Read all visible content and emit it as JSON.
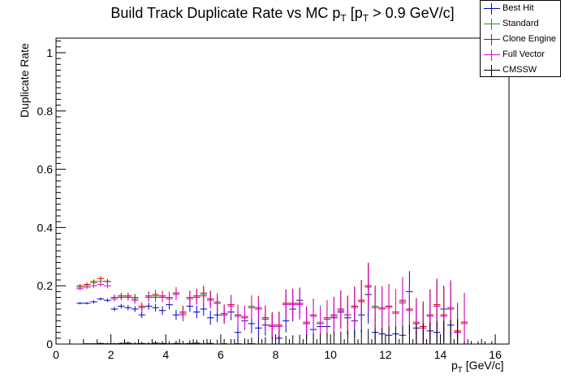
{
  "title_main": "Build Track Duplicate Rate vs MC p",
  "title_sub1": "T",
  "title_mid": " [p",
  "title_sub2": "T",
  "title_end": " > 0.9 GeV/c]",
  "chart_data": {
    "type": "scatter",
    "title": "Build Track Duplicate Rate vs MC pT [pT > 0.9 GeV/c]",
    "xlabel": "pT [GeV/c]",
    "ylabel": "Duplicate Rate",
    "xlim": [
      0,
      16.5
    ],
    "ylim": [
      0,
      1.05
    ],
    "x_ticks": [
      0,
      2,
      4,
      6,
      8,
      10,
      12,
      14,
      16
    ],
    "y_ticks": [
      0,
      0.2,
      0.4,
      0.6,
      0.8,
      1
    ],
    "y_tick_labels": [
      "0",
      "0.2",
      "0.4",
      "0.6",
      "0.8",
      "1"
    ],
    "bin_width": 0.25,
    "legend_position": "top-right",
    "series": [
      {
        "name": "Best Hit",
        "color": "#0000cc",
        "x": [
          0.875,
          1.125,
          1.375,
          1.625,
          1.875,
          2.125,
          2.375,
          2.625,
          2.875,
          3.125,
          3.375,
          3.625,
          3.875,
          4.125,
          4.375,
          4.625,
          4.875,
          5.125,
          5.375,
          5.625,
          5.875,
          6.125,
          6.375,
          6.625,
          6.875,
          7.125,
          7.375,
          7.625,
          7.875,
          8.125,
          8.375,
          8.625,
          8.875,
          9.125,
          9.375,
          9.625,
          9.875,
          10.125,
          10.375,
          10.625,
          10.875,
          11.125,
          11.375,
          11.625,
          11.875,
          12.125,
          12.375,
          12.625,
          12.875,
          13.125,
          13.375,
          13.625,
          13.875,
          14.125,
          14.375,
          14.625
        ],
        "y": [
          0.14,
          0.14,
          0.145,
          0.155,
          0.15,
          0.12,
          0.13,
          0.125,
          0.12,
          0.1,
          0.13,
          0.125,
          0.115,
          0.135,
          0.1,
          0.11,
          0.13,
          0.11,
          0.12,
          0.09,
          0.1,
          0.1,
          0.11,
          0.04,
          0.08,
          0.07,
          0.055,
          0.065,
          0.06,
          0.02,
          0.08,
          0.12,
          0.15,
          0.07,
          0.05,
          0.06,
          0.06,
          0.09,
          0.11,
          0.09,
          0.08,
          0.1,
          0.17,
          0.04,
          0.035,
          0.03,
          0.035,
          0.03,
          0.18,
          0.055,
          0.06,
          0.045,
          0.04,
          0.12,
          0.065,
          0.04
        ],
        "err": [
          0.004,
          0.004,
          0.005,
          0.005,
          0.006,
          0.007,
          0.008,
          0.009,
          0.01,
          0.011,
          0.012,
          0.013,
          0.015,
          0.016,
          0.017,
          0.018,
          0.02,
          0.021,
          0.023,
          0.024,
          0.025,
          0.027,
          0.028,
          0.03,
          0.031,
          0.033,
          0.034,
          0.036,
          0.038,
          0.039,
          0.04,
          0.042,
          0.044,
          0.045,
          0.047,
          0.049,
          0.05,
          0.052,
          0.054,
          0.056,
          0.058,
          0.06,
          0.1,
          0.06,
          0.062,
          0.064,
          0.065,
          0.067,
          0.07,
          0.07,
          0.072,
          0.075,
          0.077,
          0.08,
          0.1,
          0.08
        ]
      },
      {
        "name": "Standard",
        "color": "#00aa00",
        "x": [
          0.875,
          1.125,
          1.375,
          1.625,
          1.875,
          2.125,
          2.375,
          2.625,
          2.875,
          3.125,
          3.375,
          3.625,
          3.875,
          4.125,
          4.375,
          4.625,
          4.875,
          5.125,
          5.375,
          5.625,
          5.875,
          6.125,
          6.375,
          6.625,
          6.875,
          7.125,
          7.375,
          7.625,
          7.875,
          8.125,
          8.375,
          8.625,
          8.875,
          9.125,
          9.375,
          9.625,
          9.875,
          10.125,
          10.375,
          10.625,
          10.875,
          11.125,
          11.375,
          11.625,
          11.875,
          12.125,
          12.375,
          12.625,
          12.875,
          13.125,
          13.375,
          13.625,
          13.875,
          14.125,
          14.375,
          14.625,
          14.875
        ],
        "y": [
          0.195,
          0.2,
          0.21,
          0.215,
          0.215,
          0.16,
          0.165,
          0.165,
          0.155,
          0.125,
          0.165,
          0.165,
          0.165,
          0.16,
          0.175,
          0.105,
          0.16,
          0.165,
          0.17,
          0.155,
          0.145,
          0.1,
          0.135,
          0.1,
          0.09,
          0.13,
          0.12,
          0.09,
          0.065,
          0.065,
          0.14,
          0.14,
          0.14,
          0.07,
          0.1,
          0.075,
          0.09,
          0.1,
          0.12,
          0.1,
          0.13,
          0.15,
          0.2,
          0.13,
          0.12,
          0.13,
          0.11,
          0.14,
          0.12,
          0.07,
          0.06,
          0.1,
          0.13,
          0.1,
          0.12,
          0.045,
          0.075
        ],
        "err": [
          0.006,
          0.006,
          0.007,
          0.008,
          0.009,
          0.009,
          0.01,
          0.011,
          0.012,
          0.013,
          0.015,
          0.016,
          0.017,
          0.019,
          0.02,
          0.022,
          0.023,
          0.025,
          0.026,
          0.028,
          0.03,
          0.031,
          0.033,
          0.035,
          0.036,
          0.038,
          0.04,
          0.042,
          0.044,
          0.046,
          0.048,
          0.05,
          0.052,
          0.054,
          0.056,
          0.058,
          0.06,
          0.062,
          0.064,
          0.066,
          0.068,
          0.07,
          0.08,
          0.072,
          0.074,
          0.076,
          0.078,
          0.08,
          0.082,
          0.084,
          0.086,
          0.088,
          0.09,
          0.092,
          0.094,
          0.096,
          0.1
        ]
      },
      {
        "name": "Clone Engine",
        "color": "#dd0000",
        "x": [
          0.875,
          1.125,
          1.375,
          1.625,
          1.875,
          2.125,
          2.375,
          2.625,
          2.875,
          3.125,
          3.375,
          3.625,
          3.875,
          4.125,
          4.375,
          4.625,
          4.875,
          5.125,
          5.375,
          5.625,
          5.875,
          6.125,
          6.375,
          6.625,
          6.875,
          7.125,
          7.375,
          7.625,
          7.875,
          8.125,
          8.375,
          8.625,
          8.875,
          9.125,
          9.375,
          9.625,
          9.875,
          10.125,
          10.375,
          10.625,
          10.875,
          11.125,
          11.375,
          11.625,
          11.875,
          12.125,
          12.375,
          12.625,
          12.875,
          13.125,
          13.375,
          13.625,
          13.875,
          14.125,
          14.375,
          14.625,
          14.875
        ],
        "y": [
          0.2,
          0.205,
          0.215,
          0.225,
          0.215,
          0.16,
          0.165,
          0.165,
          0.16,
          0.13,
          0.165,
          0.17,
          0.165,
          0.16,
          0.175,
          0.11,
          0.16,
          0.165,
          0.175,
          0.155,
          0.14,
          0.105,
          0.135,
          0.1,
          0.095,
          0.125,
          0.125,
          0.09,
          0.065,
          0.065,
          0.14,
          0.14,
          0.14,
          0.075,
          0.1,
          0.07,
          0.09,
          0.1,
          0.12,
          0.1,
          0.13,
          0.15,
          0.2,
          0.125,
          0.125,
          0.13,
          0.11,
          0.15,
          0.12,
          0.075,
          0.06,
          0.1,
          0.135,
          0.1,
          0.125,
          0.045,
          0.075
        ],
        "err": [
          0.006,
          0.006,
          0.007,
          0.008,
          0.009,
          0.009,
          0.01,
          0.011,
          0.012,
          0.013,
          0.015,
          0.016,
          0.017,
          0.019,
          0.02,
          0.022,
          0.023,
          0.025,
          0.026,
          0.028,
          0.03,
          0.031,
          0.033,
          0.035,
          0.036,
          0.038,
          0.04,
          0.042,
          0.044,
          0.046,
          0.048,
          0.05,
          0.052,
          0.054,
          0.056,
          0.058,
          0.06,
          0.062,
          0.064,
          0.066,
          0.068,
          0.07,
          0.08,
          0.072,
          0.074,
          0.076,
          0.078,
          0.08,
          0.082,
          0.084,
          0.086,
          0.088,
          0.09,
          0.092,
          0.094,
          0.096,
          0.1
        ]
      },
      {
        "name": "Full Vector",
        "color": "#dd00dd",
        "x": [
          0.875,
          1.125,
          1.375,
          1.625,
          1.875,
          2.125,
          2.375,
          2.625,
          2.875,
          3.125,
          3.375,
          3.625,
          3.875,
          4.125,
          4.375,
          4.625,
          4.875,
          5.125,
          5.375,
          5.625,
          5.875,
          6.125,
          6.375,
          6.625,
          6.875,
          7.125,
          7.375,
          7.625,
          7.875,
          8.125,
          8.375,
          8.625,
          8.875,
          9.125,
          9.375,
          9.625,
          9.875,
          10.125,
          10.375,
          10.625,
          10.875,
          11.125,
          11.375,
          11.625,
          11.875,
          12.125,
          12.375,
          12.625,
          12.875,
          13.125,
          13.375,
          13.625,
          13.875,
          14.125,
          14.375,
          14.625,
          14.875
        ],
        "y": [
          0.19,
          0.195,
          0.2,
          0.205,
          0.2,
          0.155,
          0.16,
          0.16,
          0.15,
          0.125,
          0.16,
          0.16,
          0.16,
          0.155,
          0.17,
          0.1,
          0.155,
          0.16,
          0.165,
          0.15,
          0.14,
          0.1,
          0.13,
          0.095,
          0.09,
          0.125,
          0.12,
          0.085,
          0.06,
          0.06,
          0.135,
          0.135,
          0.135,
          0.07,
          0.095,
          0.07,
          0.085,
          0.095,
          0.115,
          0.1,
          0.125,
          0.145,
          0.195,
          0.125,
          0.12,
          0.125,
          0.105,
          0.145,
          0.115,
          0.07,
          0.055,
          0.095,
          0.13,
          0.095,
          0.12,
          0.04,
          0.07
        ],
        "err": [
          0.006,
          0.006,
          0.007,
          0.008,
          0.009,
          0.009,
          0.01,
          0.011,
          0.012,
          0.013,
          0.015,
          0.016,
          0.017,
          0.019,
          0.02,
          0.022,
          0.023,
          0.025,
          0.026,
          0.028,
          0.03,
          0.031,
          0.033,
          0.035,
          0.036,
          0.038,
          0.04,
          0.042,
          0.044,
          0.046,
          0.048,
          0.05,
          0.052,
          0.054,
          0.056,
          0.058,
          0.06,
          0.062,
          0.064,
          0.066,
          0.068,
          0.07,
          0.08,
          0.072,
          0.074,
          0.076,
          0.078,
          0.08,
          0.082,
          0.084,
          0.086,
          0.088,
          0.09,
          0.092,
          0.094,
          0.096,
          0.1
        ]
      },
      {
        "name": "CMSSW",
        "color": "#000000",
        "x": [
          0.875,
          1.125,
          1.375,
          1.625,
          1.875,
          2.125,
          2.375,
          2.625,
          2.875,
          3.125,
          3.375,
          3.625,
          3.875,
          4.125,
          4.375,
          4.625,
          4.875,
          5.125,
          5.375,
          5.625,
          5.875,
          6.125,
          6.375,
          6.625,
          6.875,
          7.125,
          7.375,
          7.625,
          7.875,
          8.125,
          8.375,
          8.625,
          8.875,
          9.125,
          9.375,
          9.625,
          9.875,
          10.125,
          10.375,
          10.625,
          10.875,
          11.125,
          11.375,
          11.625,
          11.875,
          12.125,
          12.375,
          12.625,
          12.875,
          13.125,
          13.375,
          13.625,
          13.875,
          14.125,
          14.375,
          14.625,
          14.875,
          15.125,
          15.375,
          15.625,
          15.875
        ],
        "y": [
          0.0,
          0.001,
          0.001,
          0.002,
          0.001,
          0.001,
          0.002,
          0.003,
          0.001,
          0.002,
          0.001,
          0.003,
          0.002,
          0.001,
          0.002,
          0.001,
          0.002,
          0.003,
          0.001,
          0.002,
          0.0,
          0.001,
          0.0,
          0.001,
          0.0,
          0.001,
          0.0,
          0.0,
          0.0,
          0.0,
          0.0,
          0.0,
          0.0,
          0.0,
          0.0,
          0.0,
          0.0,
          0.0,
          0.0,
          0.0,
          0.0,
          0.0,
          0.0,
          0.0,
          0.0,
          0.0,
          0.0,
          0.0,
          0.0,
          0.0,
          0.0,
          0.0,
          0.0,
          0.0,
          0.0,
          0.0,
          0.0,
          0.0,
          0.0,
          0.0,
          0.0
        ],
        "err": [
          0.0,
          0.002,
          0.002,
          0.003,
          0.003,
          0.003,
          0.004,
          0.005,
          0.005,
          0.006,
          0.006,
          0.007,
          0.008,
          0.008,
          0.009,
          0.01,
          0.011,
          0.012,
          0.013,
          0.014,
          0.015,
          0.016,
          0.017,
          0.018,
          0.02,
          0.021,
          0.022,
          0.024,
          0.025,
          0.027,
          0.028,
          0.03,
          0.032,
          0.033,
          0.035,
          0.037,
          0.039,
          0.041,
          0.043,
          0.045,
          0.047,
          0.05,
          0.052,
          0.054,
          0.056,
          0.059,
          0.061,
          0.064,
          0.066,
          0.069,
          0.071,
          0.074,
          0.077,
          0.08,
          0.083,
          0.086,
          0.01,
          0.01,
          0.01,
          0.01,
          0.01
        ]
      }
    ]
  }
}
